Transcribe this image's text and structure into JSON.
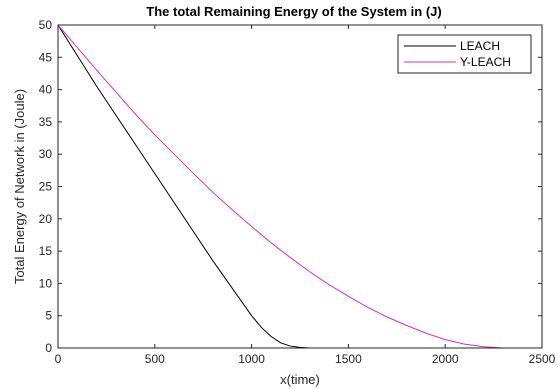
{
  "chart_data": {
    "type": "line",
    "title": "The total Remaining Energy of the System in (J)",
    "xlabel": "x(time)",
    "ylabel": "Total Energy of Network in (Joule)",
    "xlim": [
      0,
      2500
    ],
    "ylim": [
      0,
      50
    ],
    "xticks": [
      0,
      500,
      1000,
      1500,
      2000,
      2500
    ],
    "yticks": [
      0,
      5,
      10,
      15,
      20,
      25,
      30,
      35,
      40,
      45,
      50
    ],
    "grid": false,
    "legend_position": "top-right",
    "series": [
      {
        "name": "LEACH",
        "color": "#000000",
        "x": [
          0,
          200,
          400,
          600,
          800,
          1000,
          1050,
          1100,
          1150,
          1200,
          1250,
          1300,
          1400,
          1500,
          2000,
          2500
        ],
        "y": [
          50,
          40.5,
          31.5,
          22.5,
          13.5,
          5,
          3.2,
          1.8,
          0.8,
          0.3,
          0.1,
          0,
          0,
          0,
          0,
          0
        ]
      },
      {
        "name": "Y-LEACH",
        "color": "#cc33cc",
        "x": [
          0,
          100,
          200,
          300,
          400,
          500,
          600,
          700,
          800,
          900,
          1000,
          1100,
          1200,
          1300,
          1400,
          1500,
          1600,
          1700,
          1800,
          1900,
          2000,
          2100,
          2200,
          2300,
          2400,
          2500
        ],
        "y": [
          50,
          46.5,
          43,
          39.6,
          36.2,
          33,
          30,
          27,
          24.1,
          21.4,
          18.8,
          16.3,
          14,
          11.8,
          9.8,
          8,
          6.3,
          4.8,
          3.5,
          2.3,
          1.3,
          0.6,
          0.2,
          0,
          0,
          0
        ]
      }
    ]
  }
}
